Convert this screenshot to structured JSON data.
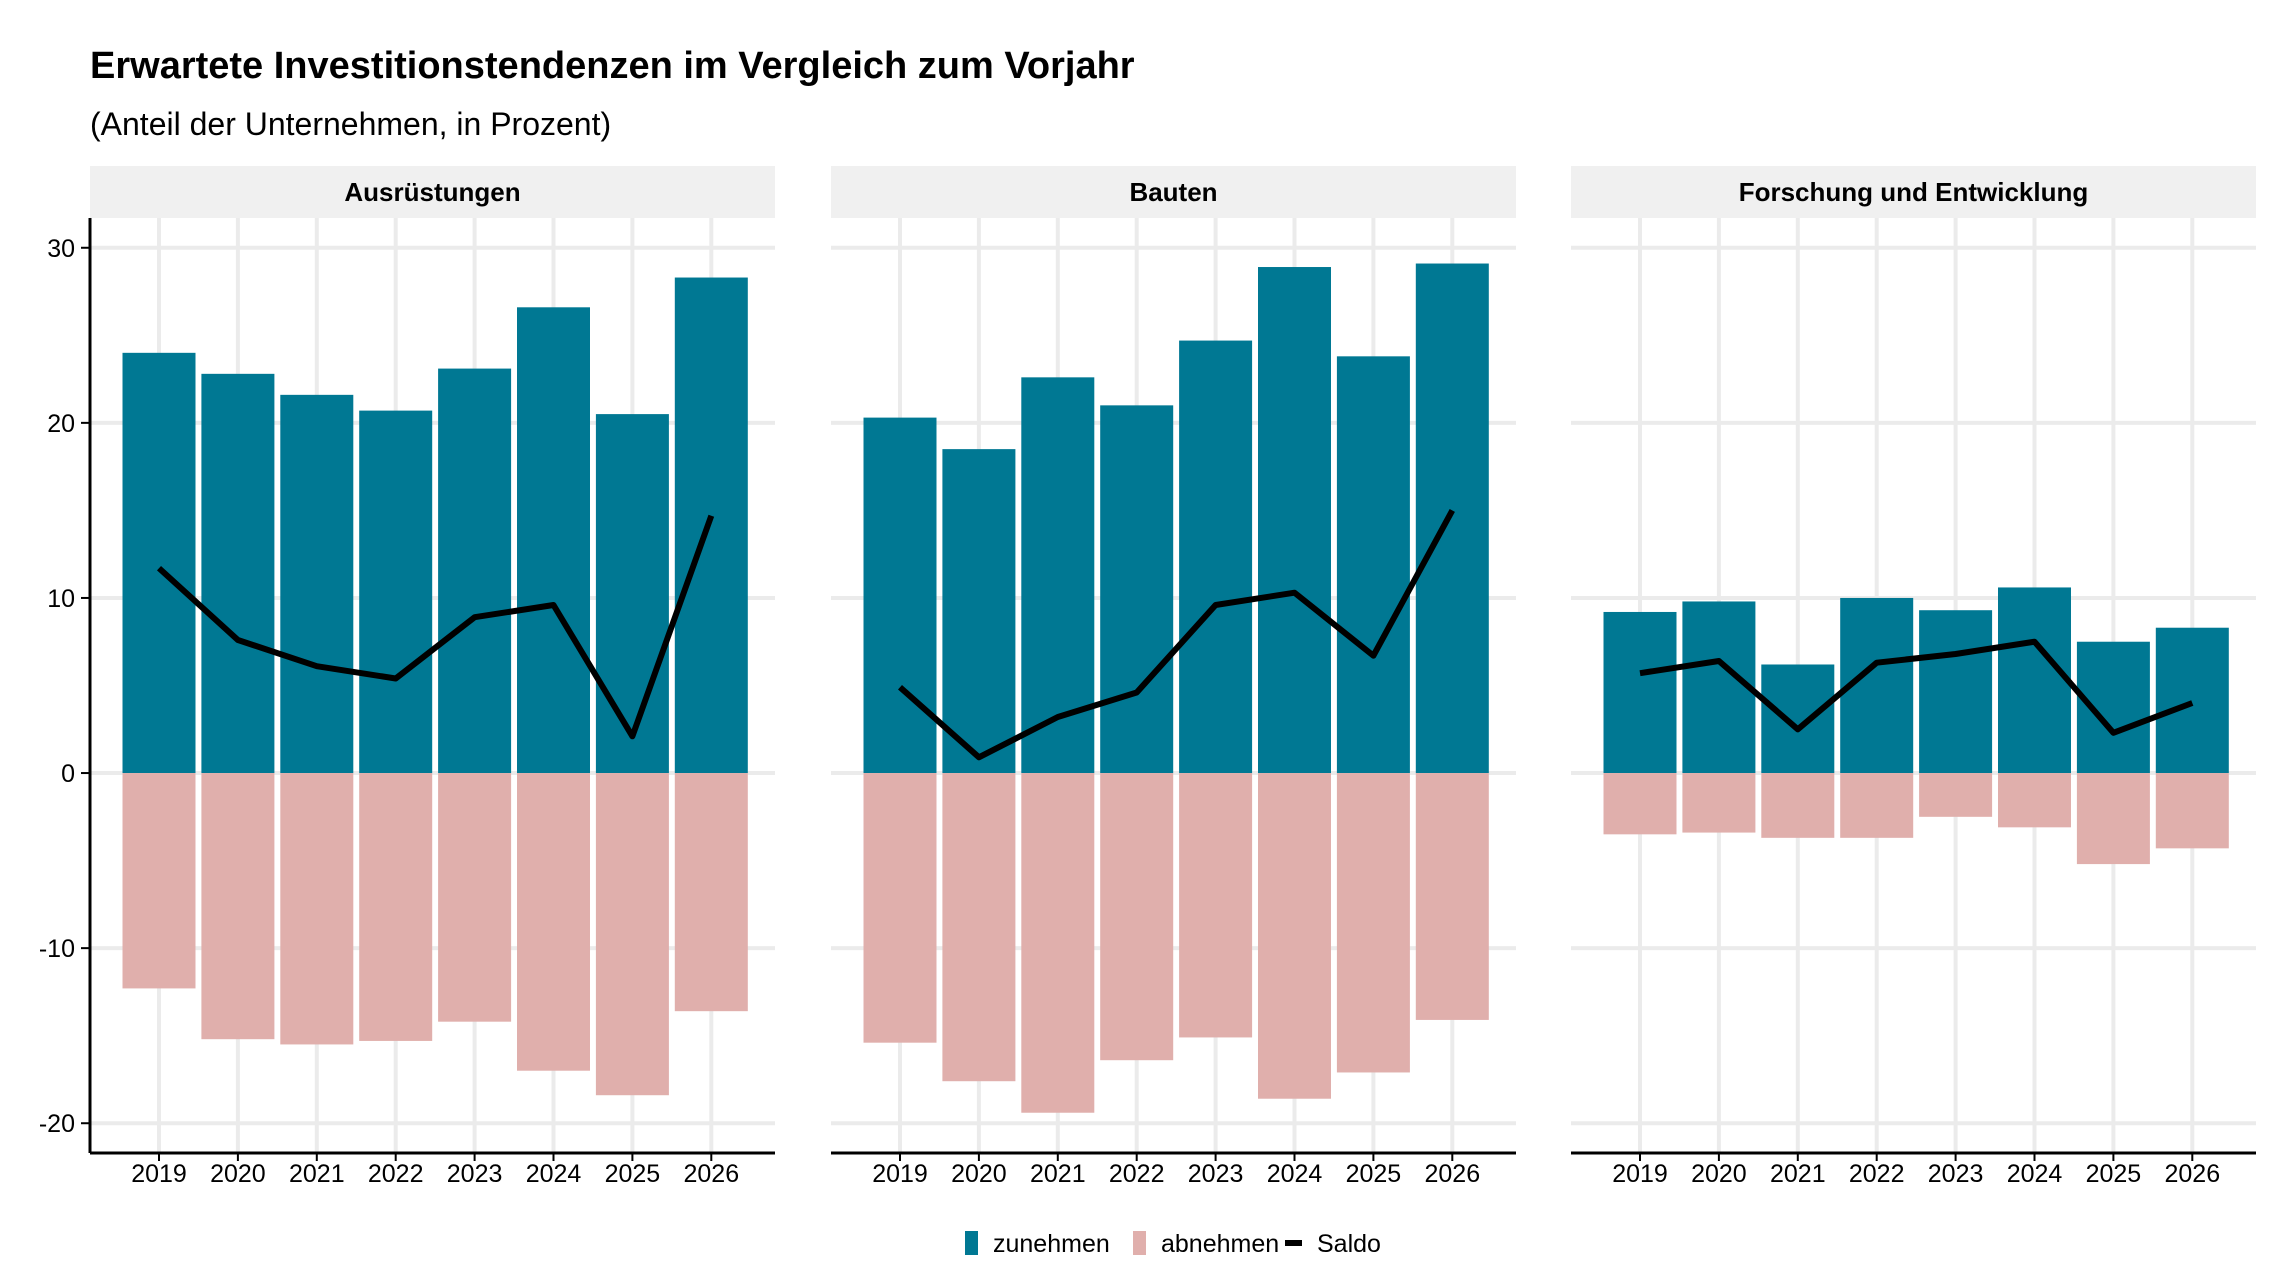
{
  "chart_data": {
    "type": "bar",
    "title": "Erwartete Investitionstendenzen im Vergleich zum Vorjahr",
    "subtitle": "(Anteil der Unternehmen, in Prozent)",
    "categories": [
      "2019",
      "2020",
      "2021",
      "2022",
      "2023",
      "2024",
      "2025",
      "2026"
    ],
    "ylim": [
      -21.7,
      31.7
    ],
    "yticks": [
      -20,
      -10,
      0,
      10,
      20,
      30
    ],
    "grid": true,
    "colors": {
      "zunehmen": "#007893",
      "abnehmen": "#e0afac",
      "saldo": "#000000",
      "strip": "#f0f0f0",
      "grid": "#ebebeb"
    },
    "legend": {
      "position": "bottom",
      "items": [
        {
          "key": "zunehmen",
          "label": "zunehmen"
        },
        {
          "key": "abnehmen",
          "label": "abnehmen"
        },
        {
          "key": "saldo",
          "label": "Saldo"
        }
      ]
    },
    "panels": [
      {
        "name": "Ausrüstungen",
        "series": [
          {
            "name": "zunehmen",
            "values": [
              24.0,
              22.8,
              21.6,
              20.7,
              23.1,
              26.6,
              20.5,
              28.3
            ]
          },
          {
            "name": "abnehmen",
            "values": [
              -12.3,
              -15.2,
              -15.5,
              -15.3,
              -14.2,
              -17.0,
              -18.4,
              -13.6
            ]
          },
          {
            "name": "Saldo",
            "values": [
              11.7,
              7.6,
              6.1,
              5.4,
              8.9,
              9.6,
              2.1,
              14.7
            ]
          }
        ]
      },
      {
        "name": "Bauten",
        "series": [
          {
            "name": "zunehmen",
            "values": [
              20.3,
              18.5,
              22.6,
              21.0,
              24.7,
              28.9,
              23.8,
              29.1
            ]
          },
          {
            "name": "abnehmen",
            "values": [
              -15.4,
              -17.6,
              -19.4,
              -16.4,
              -15.1,
              -18.6,
              -17.1,
              -14.1
            ]
          },
          {
            "name": "Saldo",
            "values": [
              4.9,
              0.9,
              3.2,
              4.6,
              9.6,
              10.3,
              6.7,
              15.0
            ]
          }
        ]
      },
      {
        "name": "Forschung und Entwicklung",
        "series": [
          {
            "name": "zunehmen",
            "values": [
              9.2,
              9.8,
              6.2,
              10.0,
              9.3,
              10.6,
              7.5,
              8.3
            ]
          },
          {
            "name": "abnehmen",
            "values": [
              -3.5,
              -3.4,
              -3.7,
              -3.7,
              -2.5,
              -3.1,
              -5.2,
              -4.3
            ]
          },
          {
            "name": "Saldo",
            "values": [
              5.7,
              6.4,
              2.5,
              6.3,
              6.8,
              7.5,
              2.3,
              4.0
            ]
          }
        ]
      }
    ]
  }
}
